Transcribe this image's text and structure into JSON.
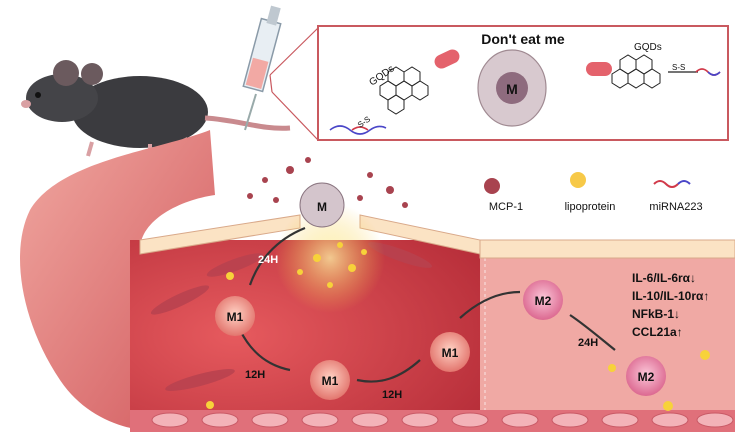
{
  "inset": {
    "title": "Don't eat me",
    "gqd_left": "GQDs",
    "gqd_right": "GQDs",
    "s_left": "S-S",
    "s_right": "S-S",
    "macrophage_label": "M"
  },
  "legend": {
    "mcp1": "MCP-1",
    "lipoprotein": "lipoprotein",
    "mirna": "miRNA223"
  },
  "vessel": {
    "macrophage_top": "M",
    "time_24h_a": "24H",
    "time_12h_a": "12H",
    "time_12h_b": "12H",
    "time_24h_b": "24H",
    "m1_a": "M1",
    "m1_b": "M1",
    "m1_c": "M1",
    "m2_a": "M2",
    "m2_b": "M2"
  },
  "effects": {
    "line1": "IL-6/IL-6rα↓",
    "line2": "IL-10/IL-10rα↑",
    "line3": "NFkB-1↓",
    "line4": "CCL21a↑"
  },
  "colors": {
    "vessel_dark": "#d9414a",
    "vessel_light": "#f2a8a3",
    "endothelium": "#fbe3c4",
    "inset_border": "#c9595f",
    "m1_cell": "#f08a78",
    "m2_cell": "#e67ca0"
  }
}
